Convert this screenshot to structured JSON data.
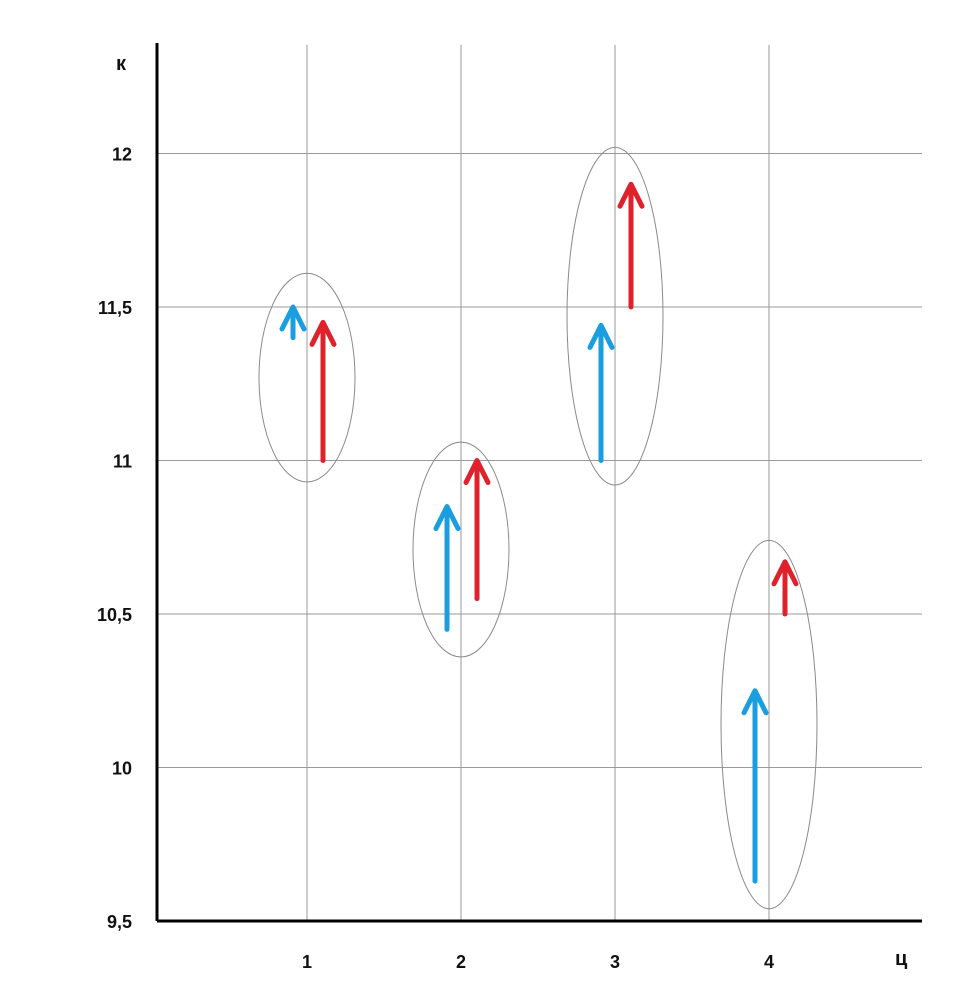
{
  "chart_data": {
    "type": "arrow-plot",
    "xlabel": "ц",
    "ylabel": "к",
    "x_ticks": [
      "1",
      "2",
      "3",
      "4"
    ],
    "y_ticks": [
      "9,5",
      "10",
      "10,5",
      "11",
      "11,5",
      "12"
    ],
    "ylim": [
      9.5,
      12.3
    ],
    "grid": true,
    "series": [
      {
        "color": "#1b9ee0",
        "arrows": [
          {
            "x": 1,
            "y_start": 11.4,
            "y_end": 11.5
          },
          {
            "x": 2,
            "y_start": 10.45,
            "y_end": 10.85
          },
          {
            "x": 3,
            "y_start": 11.0,
            "y_end": 11.44
          },
          {
            "x": 4,
            "y_start": 9.63,
            "y_end": 10.25
          }
        ]
      },
      {
        "color": "#e0202a",
        "arrows": [
          {
            "x": 1,
            "y_start": 11.0,
            "y_end": 11.45
          },
          {
            "x": 2,
            "y_start": 10.55,
            "y_end": 11.0
          },
          {
            "x": 3,
            "y_start": 11.5,
            "y_end": 11.9
          },
          {
            "x": 4,
            "y_start": 10.5,
            "y_end": 10.67
          }
        ]
      }
    ],
    "groups": [
      {
        "x": 1,
        "y_center": 11.27,
        "y_half_height": 0.34
      },
      {
        "x": 2,
        "y_center": 10.71,
        "y_half_height": 0.35
      },
      {
        "x": 3,
        "y_center": 11.47,
        "y_half_height": 0.55
      },
      {
        "x": 4,
        "y_center": 10.14,
        "y_half_height": 0.6
      }
    ]
  }
}
